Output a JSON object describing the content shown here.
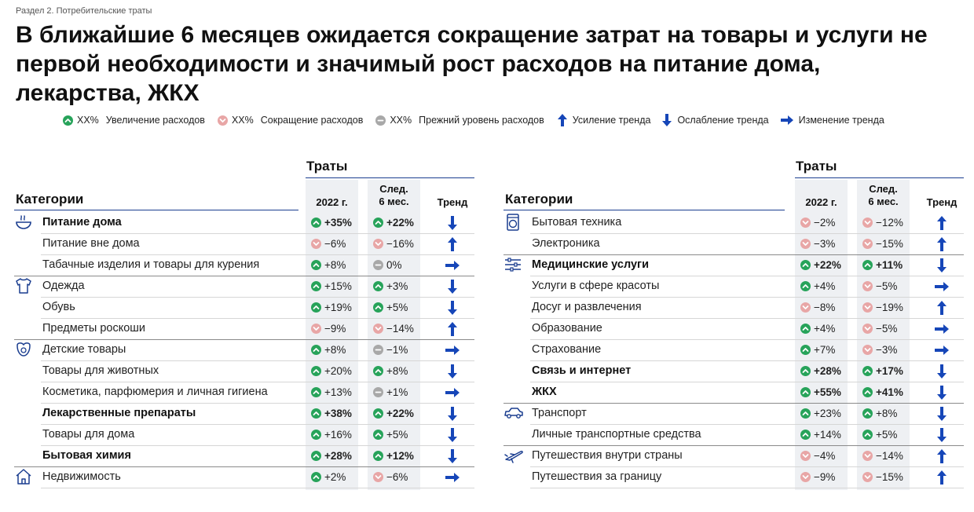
{
  "section": "Раздел 2. Потребительские траты",
  "title": "В ближайшие 6 месяцев ожидается сокращение затрат на товары и услуги не первой необходимости и значимый рост расходов на питание дома, лекарства, ЖКХ",
  "legend": {
    "placeholder": "XX%",
    "increase": "Увеличение расходов",
    "decrease": "Сокращение расходов",
    "same": "Прежний уровень расходов",
    "trend_up": "Усиление тренда",
    "trend_down": "Ослабление тренда",
    "trend_change": "Изменение тренда"
  },
  "colors": {
    "accent": "#1a3d8f",
    "increase": "#27a35a",
    "decrease": "#e8a6a6",
    "same": "#a8a8a8",
    "trend_arrow": "#1646b8"
  },
  "headers": {
    "spend": "Траты",
    "categories": "Категории",
    "year": "2022 г.",
    "next_line1": "След.",
    "next_line2": "6 мес.",
    "trend": "Тренд"
  },
  "left_rows": [
    {
      "icon": "bowl-icon",
      "label": "Питание дома",
      "bold": true,
      "v2022": "+35%",
      "s2022": "up",
      "vnext": "+22%",
      "snext": "up",
      "trend": "down",
      "group_end": false
    },
    {
      "icon": "",
      "label": "Питание вне дома",
      "bold": false,
      "v2022": "−6%",
      "s2022": "down",
      "vnext": "−16%",
      "snext": "down",
      "trend": "up",
      "group_end": false
    },
    {
      "icon": "",
      "label": "Табачные изделия и товары для курения",
      "bold": false,
      "v2022": "+8%",
      "s2022": "up",
      "vnext": "0%",
      "snext": "flat",
      "trend": "right",
      "group_end": true
    },
    {
      "icon": "tshirt-icon",
      "label": "Одежда",
      "bold": false,
      "v2022": "+15%",
      "s2022": "up",
      "vnext": "+3%",
      "snext": "up",
      "trend": "down",
      "group_end": false
    },
    {
      "icon": "",
      "label": "Обувь",
      "bold": false,
      "v2022": "+19%",
      "s2022": "up",
      "vnext": "+5%",
      "snext": "up",
      "trend": "down",
      "group_end": false
    },
    {
      "icon": "",
      "label": "Предметы роскоши",
      "bold": false,
      "v2022": "−9%",
      "s2022": "down",
      "vnext": "−14%",
      "snext": "down",
      "trend": "up",
      "group_end": true
    },
    {
      "icon": "baby-bib-icon",
      "label": "Детские товары",
      "bold": false,
      "v2022": "+8%",
      "s2022": "up",
      "vnext": "−1%",
      "snext": "flat",
      "trend": "right",
      "group_end": false
    },
    {
      "icon": "",
      "label": "Товары для животных",
      "bold": false,
      "v2022": "+20%",
      "s2022": "up",
      "vnext": "+8%",
      "snext": "up",
      "trend": "down",
      "group_end": false
    },
    {
      "icon": "",
      "label": "Косметика, парфюмерия и личная гигиена",
      "bold": false,
      "v2022": "+13%",
      "s2022": "up",
      "vnext": "+1%",
      "snext": "flat",
      "trend": "right",
      "group_end": false
    },
    {
      "icon": "",
      "label": "Лекарственные препараты",
      "bold": true,
      "v2022": "+38%",
      "s2022": "up",
      "vnext": "+22%",
      "snext": "up",
      "trend": "down",
      "group_end": false
    },
    {
      "icon": "",
      "label": "Товары для дома",
      "bold": false,
      "v2022": "+16%",
      "s2022": "up",
      "vnext": "+5%",
      "snext": "up",
      "trend": "down",
      "group_end": false
    },
    {
      "icon": "",
      "label": "Бытовая химия",
      "bold": true,
      "v2022": "+28%",
      "s2022": "up",
      "vnext": "+12%",
      "snext": "up",
      "trend": "down",
      "group_end": true
    },
    {
      "icon": "house-icon",
      "label": "Недвижимость",
      "bold": false,
      "v2022": "+2%",
      "s2022": "up",
      "vnext": "−6%",
      "snext": "down",
      "trend": "right",
      "group_end": false
    }
  ],
  "right_rows": [
    {
      "icon": "washing-machine-icon",
      "label": "Бытовая техника",
      "bold": false,
      "v2022": "−2%",
      "s2022": "down",
      "vnext": "−12%",
      "snext": "down",
      "trend": "up",
      "group_end": false
    },
    {
      "icon": "",
      "label": "Электроника",
      "bold": false,
      "v2022": "−3%",
      "s2022": "down",
      "vnext": "−15%",
      "snext": "down",
      "trend": "up",
      "group_end": true
    },
    {
      "icon": "sliders-icon",
      "label": "Медицинские услуги",
      "bold": true,
      "v2022": "+22%",
      "s2022": "up",
      "vnext": "+11%",
      "snext": "up",
      "trend": "down",
      "group_end": false
    },
    {
      "icon": "",
      "label": "Услуги в сфере красоты",
      "bold": false,
      "v2022": "+4%",
      "s2022": "up",
      "vnext": "−5%",
      "snext": "down",
      "trend": "right",
      "group_end": false
    },
    {
      "icon": "",
      "label": "Досуг и развлечения",
      "bold": false,
      "v2022": "−8%",
      "s2022": "down",
      "vnext": "−19%",
      "snext": "down",
      "trend": "up",
      "group_end": false
    },
    {
      "icon": "",
      "label": "Образование",
      "bold": false,
      "v2022": "+4%",
      "s2022": "up",
      "vnext": "−5%",
      "snext": "down",
      "trend": "right",
      "group_end": false
    },
    {
      "icon": "",
      "label": "Страхование",
      "bold": false,
      "v2022": "+7%",
      "s2022": "up",
      "vnext": "−3%",
      "snext": "down",
      "trend": "right",
      "group_end": false
    },
    {
      "icon": "",
      "label": "Связь и интернет",
      "bold": true,
      "v2022": "+28%",
      "s2022": "up",
      "vnext": "+17%",
      "snext": "up",
      "trend": "down",
      "group_end": false
    },
    {
      "icon": "",
      "label": "ЖКХ",
      "bold": true,
      "v2022": "+55%",
      "s2022": "up",
      "vnext": "+41%",
      "snext": "up",
      "trend": "down",
      "group_end": true
    },
    {
      "icon": "car-icon",
      "label": "Транспорт",
      "bold": false,
      "v2022": "+23%",
      "s2022": "up",
      "vnext": "+8%",
      "snext": "up",
      "trend": "down",
      "group_end": false
    },
    {
      "icon": "",
      "label": "Личные транспортные средства",
      "bold": false,
      "v2022": "+14%",
      "s2022": "up",
      "vnext": "+5%",
      "snext": "up",
      "trend": "down",
      "group_end": true
    },
    {
      "icon": "airplane-icon",
      "label": "Путешествия внутри страны",
      "bold": false,
      "v2022": "−4%",
      "s2022": "down",
      "vnext": "−14%",
      "snext": "down",
      "trend": "up",
      "group_end": false
    },
    {
      "icon": "",
      "label": "Путешествия за границу",
      "bold": false,
      "v2022": "−9%",
      "s2022": "down",
      "vnext": "−15%",
      "snext": "down",
      "trend": "up",
      "group_end": false
    }
  ]
}
